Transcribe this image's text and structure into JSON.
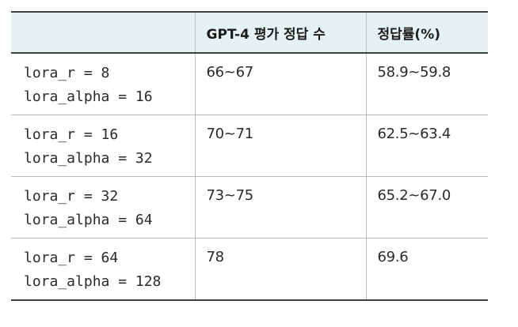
{
  "table": {
    "headers": [
      "",
      "GPT-4 평가 정답 수",
      "정답률(%)"
    ],
    "rows": [
      {
        "lora_r": "lora_r = 8",
        "lora_alpha": "lora_alpha = 16",
        "correct": "66~67",
        "accuracy": "58.9~59.8"
      },
      {
        "lora_r": "lora_r = 16",
        "lora_alpha": "lora_alpha = 32",
        "correct": "70~71",
        "accuracy": "62.5~63.4"
      },
      {
        "lora_r": "lora_r = 32",
        "lora_alpha": "lora_alpha = 64",
        "correct": "73~75",
        "accuracy": "65.2~67.0"
      },
      {
        "lora_r": "lora_r = 64",
        "lora_alpha": "lora_alpha = 128",
        "correct": "78",
        "accuracy": "69.6"
      }
    ]
  },
  "colors": {
    "header_background": "#e6f2f1",
    "rule_dark": "#3f3f3f",
    "rule_light": "#b8b8b8"
  }
}
